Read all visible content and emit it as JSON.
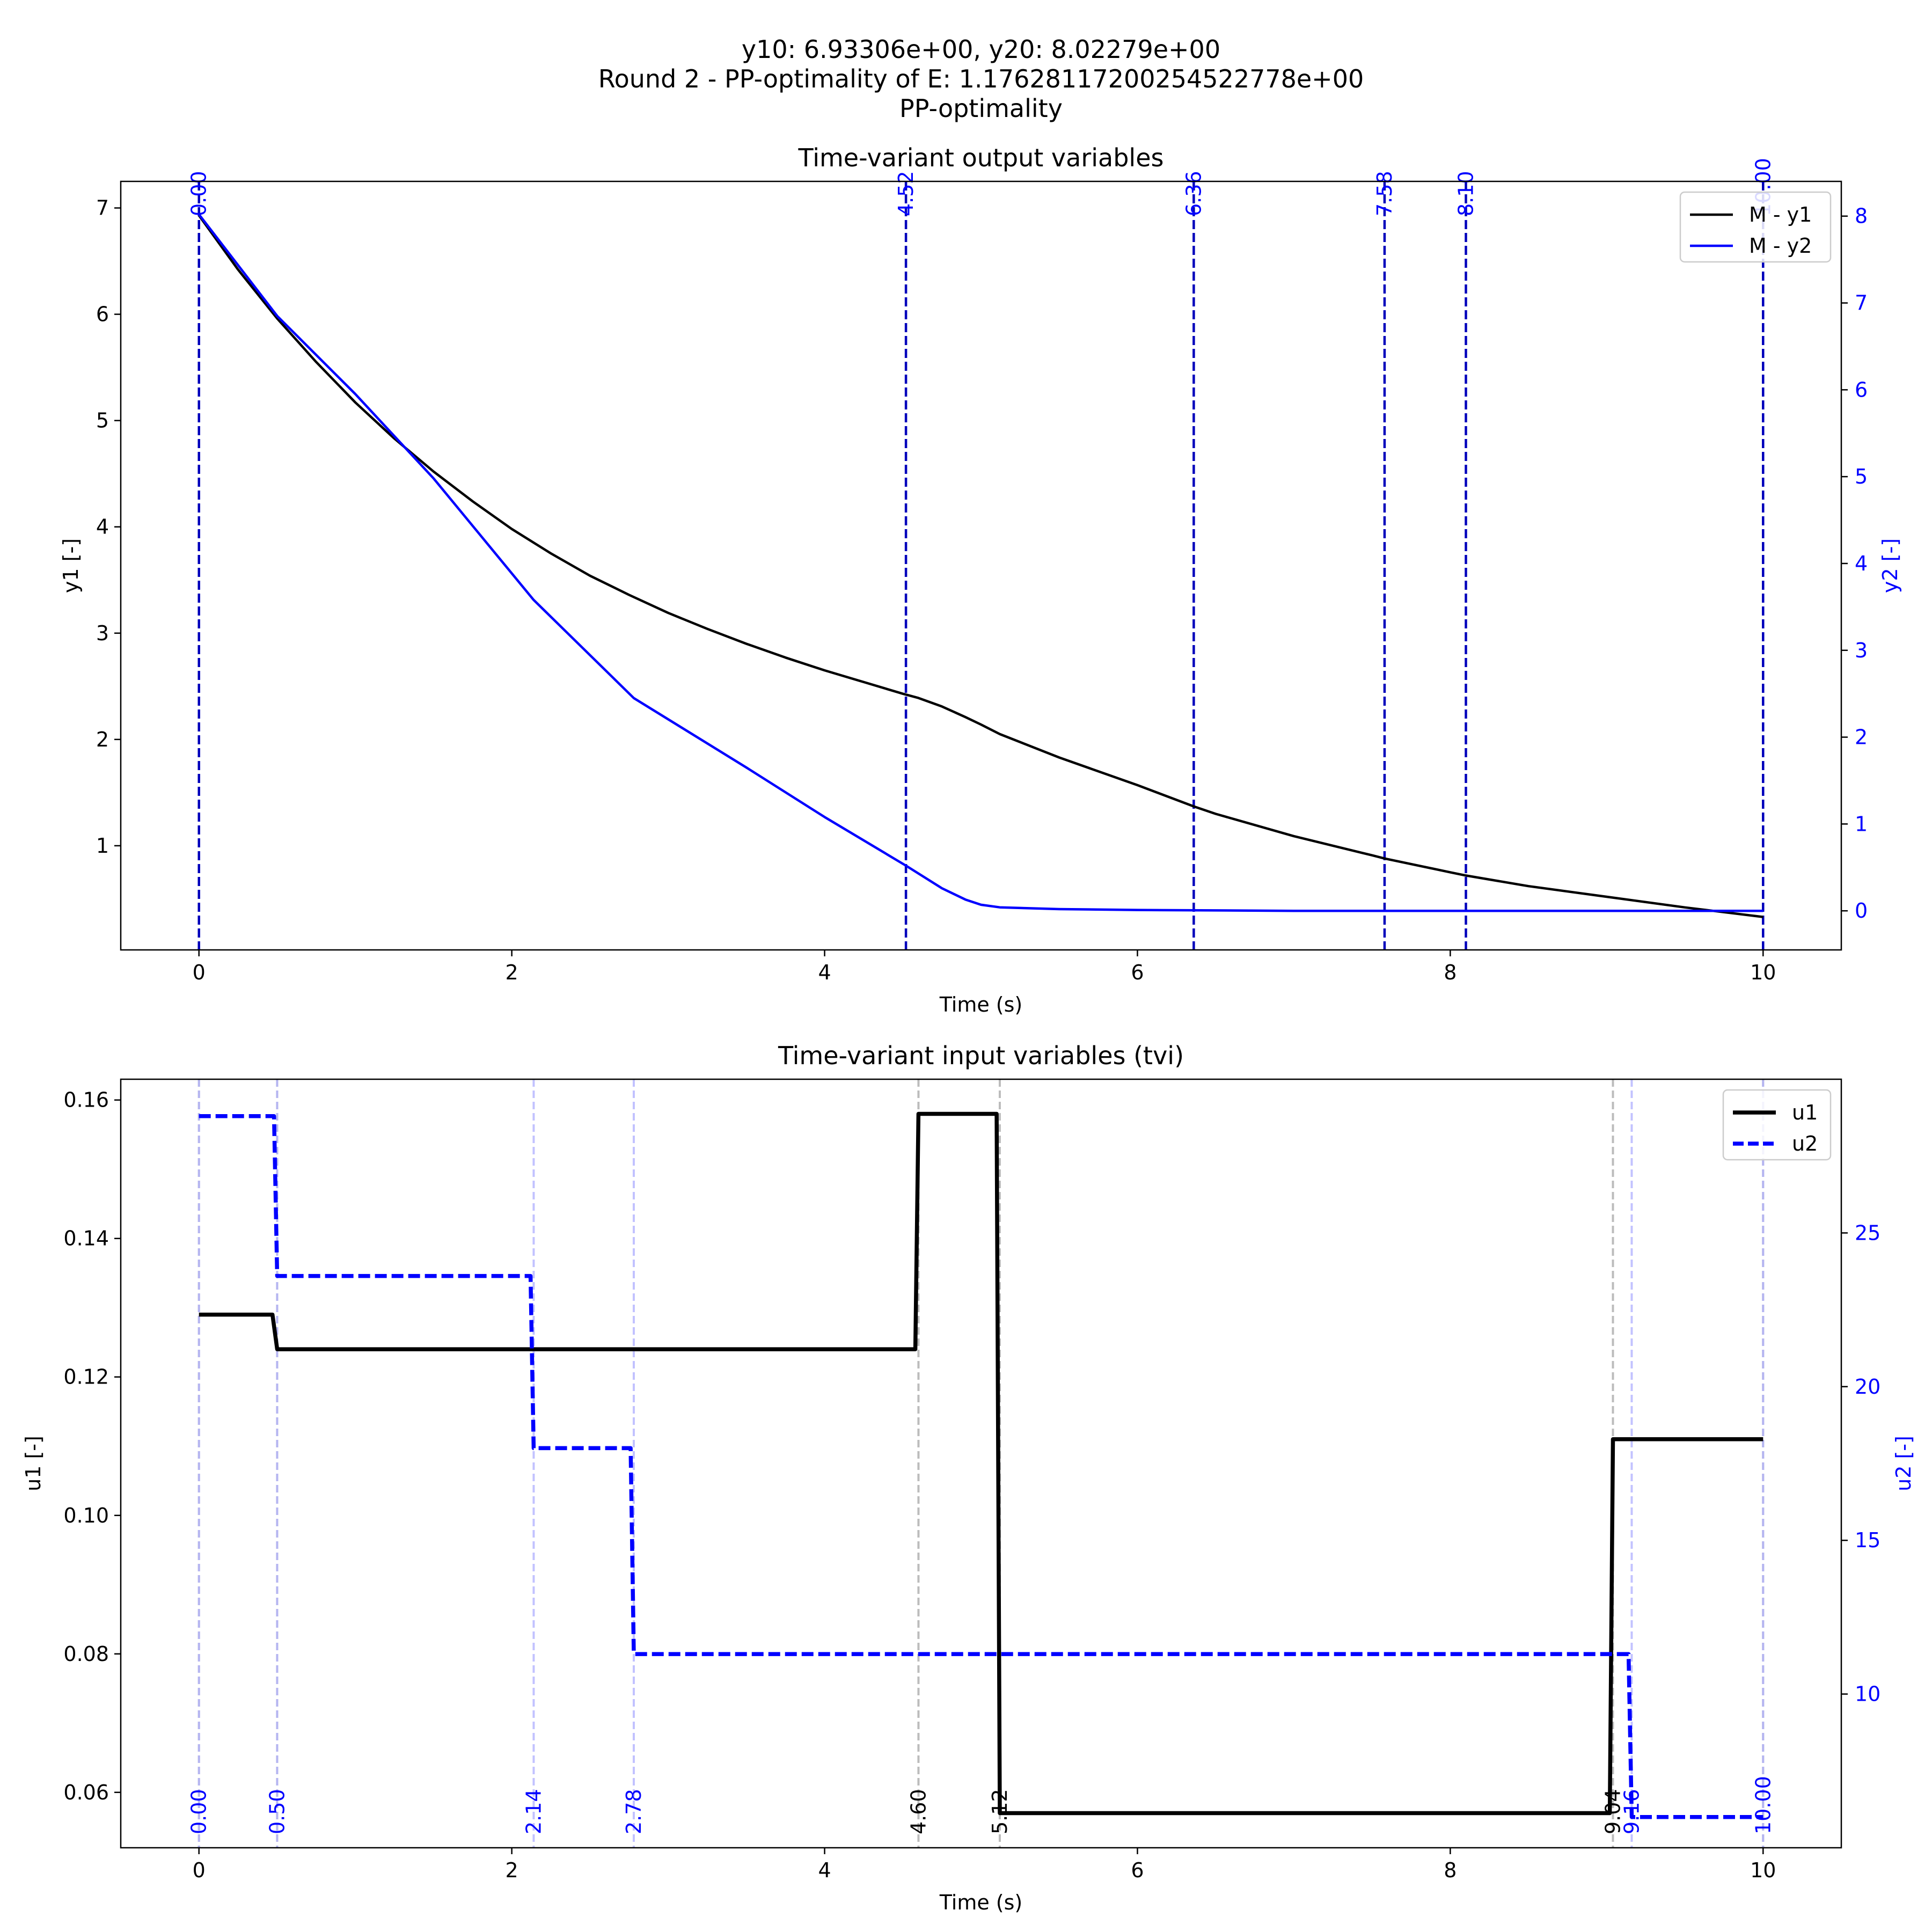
{
  "figure": {
    "title_lines": [
      "y10: 6.93306e+00, y20: 8.02279e+00",
      "Round 2 - PP-optimality of E: 1.17628117200254522778e+00",
      "PP-optimality"
    ]
  },
  "colors": {
    "black": "#000000",
    "blue": "#0000ff",
    "vline_dark": "#0000bb",
    "grey": "#a0a0a0",
    "light_blue": "#b4b4ff"
  },
  "chart_data": [
    {
      "type": "line",
      "title": "Time-variant output variables",
      "xlabel": "Time (s)",
      "ylabel_left": "y1 [-]",
      "ylabel_right": "y2 [-]",
      "xlim": [
        -0.5,
        10.5
      ],
      "ylim_left": [
        0.02,
        7.25
      ],
      "ylim_right": [
        -0.45,
        8.4
      ],
      "xticks": [
        "0",
        "2",
        "4",
        "6",
        "8",
        "10"
      ],
      "yticks_left": [
        "1",
        "2",
        "3",
        "4",
        "5",
        "6",
        "7"
      ],
      "yticks_right": [
        "0",
        "1",
        "2",
        "3",
        "4",
        "5",
        "6",
        "7",
        "8"
      ],
      "legend_position": "top-right",
      "series": [
        {
          "name": "M - y1",
          "axis": "left",
          "color": "#000000",
          "style": "solid",
          "x": [
            0,
            0.25,
            0.5,
            0.75,
            1.0,
            1.25,
            1.5,
            1.75,
            2.0,
            2.25,
            2.5,
            2.75,
            3.0,
            3.25,
            3.5,
            3.75,
            4.0,
            4.25,
            4.5,
            4.6,
            4.75,
            4.9,
            5.0,
            5.12,
            5.5,
            6.0,
            6.36,
            6.5,
            7.0,
            7.5,
            7.58,
            8.0,
            8.1,
            8.5,
            9.0,
            9.5,
            10.0
          ],
          "y": [
            6.93,
            6.42,
            5.96,
            5.55,
            5.17,
            4.83,
            4.52,
            4.24,
            3.98,
            3.75,
            3.54,
            3.36,
            3.19,
            3.04,
            2.9,
            2.77,
            2.65,
            2.54,
            2.43,
            2.39,
            2.31,
            2.21,
            2.14,
            2.05,
            1.83,
            1.57,
            1.37,
            1.3,
            1.09,
            0.91,
            0.88,
            0.75,
            0.72,
            0.62,
            0.52,
            0.42,
            0.33
          ]
        },
        {
          "name": "M - y2",
          "axis": "right",
          "color": "#0000ff",
          "style": "solid",
          "x": [
            0,
            0.5,
            1.0,
            1.5,
            2.14,
            2.78,
            3.5,
            4.0,
            4.52,
            4.75,
            4.9,
            5.0,
            5.12,
            5.5,
            6.0,
            7.0,
            8.0,
            9.0,
            10.0
          ],
          "y": [
            8.02,
            6.85,
            5.95,
            4.98,
            3.58,
            2.45,
            1.65,
            1.08,
            0.52,
            0.26,
            0.13,
            0.07,
            0.04,
            0.02,
            0.01,
            0.0,
            0.0,
            0.0,
            0.0
          ]
        }
      ],
      "vlines": [
        {
          "x": 0.0,
          "label": "0.00"
        },
        {
          "x": 4.52,
          "label": "4.52"
        },
        {
          "x": 6.36,
          "label": "6.36"
        },
        {
          "x": 7.58,
          "label": "7.58"
        },
        {
          "x": 8.1,
          "label": "8.10"
        },
        {
          "x": 10.0,
          "label": "10.00"
        }
      ]
    },
    {
      "type": "line",
      "title": "Time-variant input variables (tvi)",
      "xlabel": "Time (s)",
      "ylabel_left": "u1 [-]",
      "ylabel_right": "u2 [-]",
      "xlim": [
        -0.5,
        10.5
      ],
      "ylim_left": [
        0.052,
        0.163
      ],
      "ylim_right": [
        5.0,
        30.0
      ],
      "xticks": [
        "0",
        "2",
        "4",
        "6",
        "8",
        "10"
      ],
      "yticks_left": [
        "0.06",
        "0.08",
        "0.10",
        "0.12",
        "0.14",
        "0.16"
      ],
      "yticks_right": [
        "10",
        "15",
        "20",
        "25"
      ],
      "legend_position": "top-right",
      "series": [
        {
          "name": "u1",
          "axis": "left",
          "color": "#000000",
          "style": "solid",
          "x": [
            0,
            0.47,
            0.5,
            4.58,
            4.6,
            5.1,
            5.12,
            9.02,
            9.04,
            10.0
          ],
          "y": [
            0.129,
            0.129,
            0.124,
            0.124,
            0.158,
            0.158,
            0.057,
            0.057,
            0.111,
            0.111
          ]
        },
        {
          "name": "u2",
          "axis": "right",
          "color": "#0000ff",
          "style": "dashed",
          "x": [
            0,
            0.48,
            0.5,
            2.12,
            2.14,
            2.76,
            2.78,
            9.14,
            9.16,
            10.0
          ],
          "y": [
            28.8,
            28.8,
            23.6,
            23.6,
            18.0,
            18.0,
            11.3,
            11.3,
            6.0,
            6.0
          ]
        }
      ],
      "vlines_u1": [
        {
          "x": 0.0,
          "label": ""
        },
        {
          "x": 0.5,
          "label": ""
        },
        {
          "x": 4.6,
          "label": "4.60"
        },
        {
          "x": 5.12,
          "label": "5.12"
        },
        {
          "x": 9.04,
          "label": "9.04"
        },
        {
          "x": 10.0,
          "label": ""
        }
      ],
      "vlines_u2": [
        {
          "x": 0.0,
          "label": "0.00"
        },
        {
          "x": 0.5,
          "label": "0.50"
        },
        {
          "x": 2.14,
          "label": "2.14"
        },
        {
          "x": 2.78,
          "label": "2.78"
        },
        {
          "x": 9.16,
          "label": "9.16"
        },
        {
          "x": 10.0,
          "label": "10.00"
        }
      ]
    }
  ]
}
